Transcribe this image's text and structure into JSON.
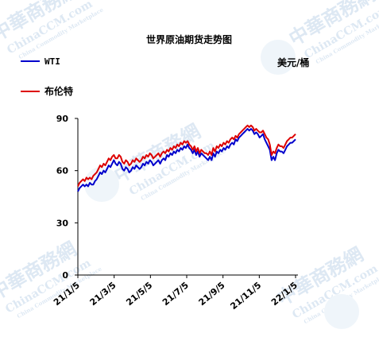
{
  "watermark": {
    "cn": "中華商務網",
    "en": "ChinaCCM.com",
    "sub": "China Commodity Marketplace"
  },
  "chart_data": {
    "type": "line",
    "title": "世界原油期货走势图",
    "unit": "美元/桶",
    "ylim": [
      0,
      90
    ],
    "y_ticks": [
      "0",
      "30",
      "60",
      "90"
    ],
    "x_ticks": [
      "21/1/5",
      "21/3/5",
      "21/5/5",
      "21/7/5",
      "21/9/5",
      "21/11/5",
      "22/1/5"
    ],
    "grid": false,
    "legend": "top-left",
    "series": [
      {
        "name": "WTI",
        "color": "#0000cc",
        "values": [
          48,
          50,
          51,
          52,
          51,
          52,
          51,
          53,
          52,
          52,
          54,
          55,
          57,
          59,
          58,
          60,
          59,
          61,
          63,
          62,
          64,
          66,
          64,
          63,
          65,
          64,
          61,
          60,
          62,
          61,
          59,
          60,
          62,
          61,
          63,
          62,
          61,
          62,
          64,
          63,
          65,
          64,
          66,
          65,
          63,
          64,
          65,
          66,
          64,
          66,
          67,
          66,
          69,
          68,
          70,
          69,
          71,
          70,
          72,
          71,
          73,
          72,
          74,
          73,
          75,
          73,
          72,
          70,
          72,
          69,
          71,
          68,
          70,
          69,
          68,
          67,
          66,
          68,
          66,
          70,
          68,
          71,
          70,
          72,
          71,
          73,
          72,
          74,
          73,
          75,
          76,
          75,
          78,
          77,
          79,
          80,
          81,
          82,
          83,
          84,
          83,
          84,
          83,
          81,
          82,
          81,
          79,
          80,
          81,
          78,
          76,
          74,
          72,
          66,
          68,
          66,
          70,
          72,
          71,
          71,
          70,
          72,
          74,
          75,
          76,
          76,
          77,
          78
        ]
      },
      {
        "name": "布伦特",
        "color": "#dd0000",
        "values": [
          51,
          53,
          54,
          55,
          54,
          56,
          55,
          56,
          55,
          57,
          58,
          59,
          61,
          63,
          62,
          64,
          63,
          65,
          67,
          66,
          68,
          69,
          67,
          67,
          69,
          68,
          65,
          64,
          66,
          65,
          63,
          64,
          66,
          65,
          67,
          66,
          65,
          66,
          68,
          67,
          69,
          68,
          70,
          69,
          67,
          68,
          69,
          70,
          68,
          70,
          71,
          70,
          72,
          71,
          73,
          72,
          74,
          73,
          75,
          74,
          76,
          75,
          77,
          76,
          77,
          75,
          74,
          72,
          74,
          71,
          73,
          70,
          72,
          71,
          70,
          70,
          69,
          71,
          69,
          73,
          71,
          74,
          73,
          75,
          74,
          76,
          75,
          77,
          76,
          78,
          79,
          78,
          80,
          79,
          81,
          82,
          83,
          84,
          85,
          86,
          85,
          86,
          85,
          83,
          84,
          83,
          82,
          82,
          83,
          81,
          79,
          78,
          75,
          69,
          71,
          70,
          73,
          75,
          74,
          74,
          73,
          75,
          77,
          78,
          79,
          79,
          80,
          81
        ]
      }
    ]
  }
}
